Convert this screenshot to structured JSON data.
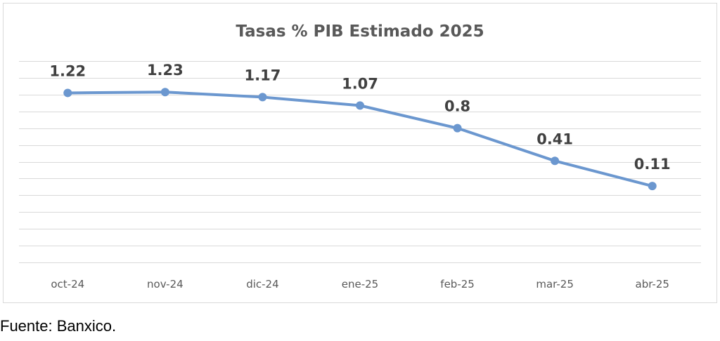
{
  "chart_data": {
    "type": "line",
    "title": "Tasas % PIB Estimado 2025",
    "xlabel": "",
    "ylabel": "",
    "categories": [
      "oct-24",
      "nov-24",
      "dic-24",
      "ene-25",
      "feb-25",
      "mar-25",
      "abr-25"
    ],
    "series": [
      {
        "values": [
          1.22,
          1.23,
          1.17,
          1.07,
          0.8,
          0.41,
          0.11
        ],
        "color": "#6b97cf"
      }
    ],
    "value_labels": [
      "1.22",
      "1.23",
      "1.17",
      "1.07",
      "0.8",
      "0.41",
      "0.11"
    ],
    "ylim": [
      -0.8,
      1.6
    ],
    "y_tick_step": 0.2,
    "grid": true,
    "legend": "none"
  },
  "footer": {
    "source": "Fuente: Banxico."
  },
  "colors": {
    "line": "#6b97cf",
    "grid": "#d9d9d9",
    "text": "#595959"
  }
}
